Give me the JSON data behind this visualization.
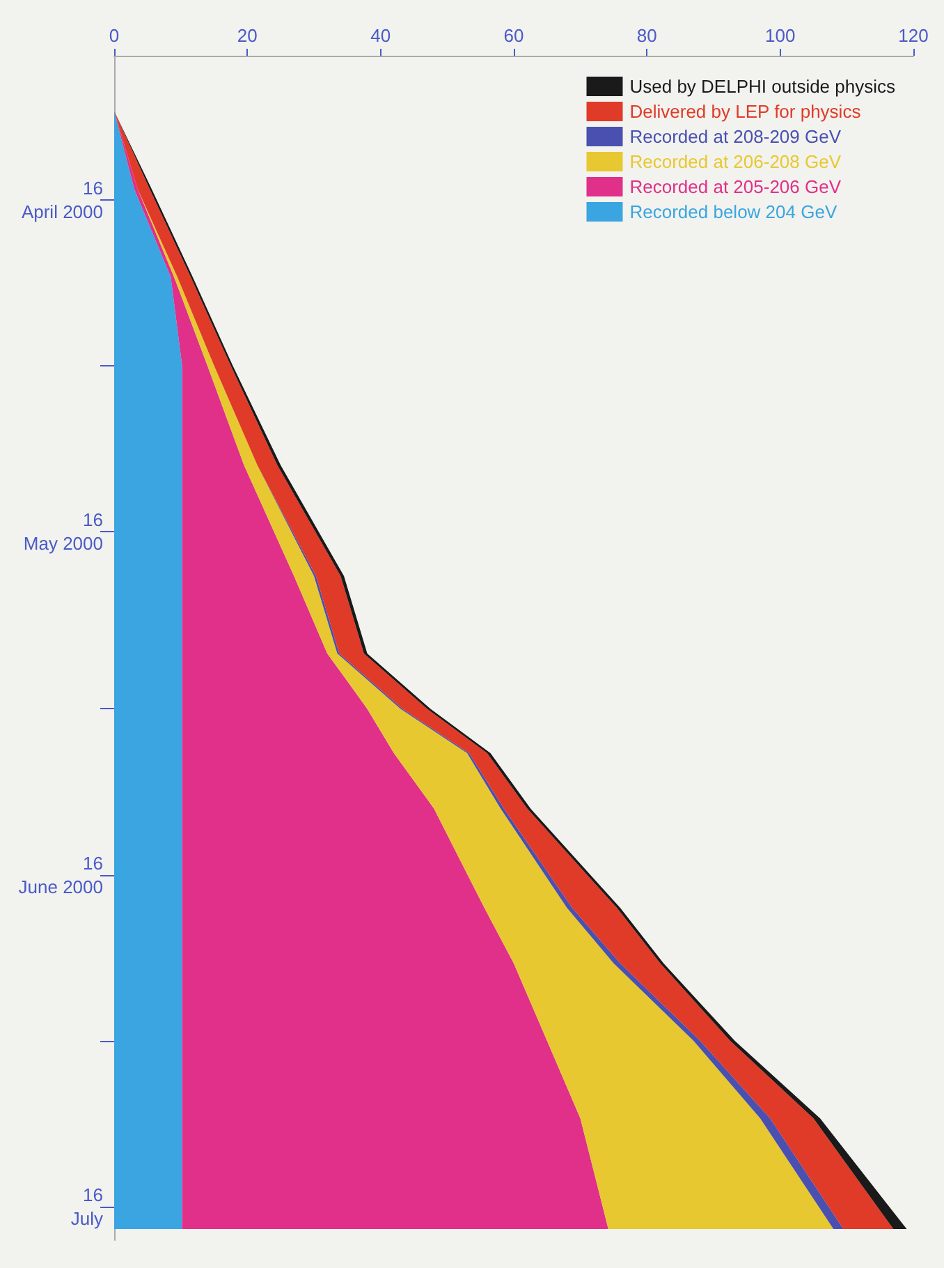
{
  "chart_data": {
    "type": "area",
    "stacked": true,
    "orientation": "horizontal",
    "legend": "top right",
    "grid": false,
    "marker": "none",
    "x": [
      "2000-04-08",
      "2000-04-15",
      "2000-04-23",
      "2000-05-01",
      "2000-05-10",
      "2000-05-20",
      "2000-05-27",
      "2000-06-01",
      "2000-06-05",
      "2000-06-10",
      "2000-06-19",
      "2000-06-24",
      "2000-07-01",
      "2000-07-08",
      "2000-07-18"
    ],
    "ylim": [
      "2000-07-19",
      "2000-04-03"
    ],
    "yticks": [
      {
        "value": "2000-04-16",
        "label": "16\nApril 2000"
      },
      {
        "value": "2000-05-01",
        "label": null
      },
      {
        "value": "2000-05-16",
        "label": "16\nMay 2000"
      },
      {
        "value": "2000-06-01",
        "label": null
      },
      {
        "value": "2000-06-16",
        "label": "16\nJune 2000"
      },
      {
        "value": "2000-07-01",
        "label": null
      },
      {
        "value": "2000-07-16",
        "label": "16\nJuly"
      }
    ],
    "xlim": [
      0,
      120
    ],
    "xticks": [
      0,
      20,
      40,
      60,
      80,
      100,
      120
    ],
    "series": [
      {
        "name": "Recorded below 204 GeV",
        "color": "#3aa5e0",
        "values": [
          0,
          3,
          8.5,
          10.2,
          10.2,
          10.2,
          10.2,
          10.2,
          10.2,
          10.2,
          10.2,
          10.2,
          10.2,
          10.2,
          10.2
        ]
      },
      {
        "name": "Recorded at 205-206 GeV",
        "color": "#e0308a",
        "values": [
          0,
          0.5,
          0.5,
          3.8,
          9.3,
          16.8,
          21.8,
          27.8,
          31.8,
          37.8,
          45.4,
          49.8,
          54.8,
          59.8,
          64
        ]
      },
      {
        "name": "Recorded at 206-208 GeV",
        "color": "#e8c830",
        "values": [
          0,
          0,
          0.5,
          1,
          2,
          3,
          1.5,
          5,
          11,
          10,
          12.4,
          15,
          22,
          27,
          33.8
        ]
      },
      {
        "name": "Recorded at 208-209 GeV",
        "color": "#4a50b0",
        "values": [
          0,
          0,
          0,
          0,
          0,
          0.3,
          0.3,
          0.3,
          0.3,
          0.5,
          0.8,
          1,
          1,
          1.5,
          1.5
        ]
      },
      {
        "name": "Delivered by LEP for physics",
        "color": "#e03a28",
        "values": [
          0,
          1.8,
          2,
          2.5,
          3,
          3.7,
          3.7,
          3.7,
          2.7,
          3.5,
          6.7,
          6,
          4.5,
          6.5,
          7.5
        ]
      },
      {
        "name": "Used by DELPHI outside physics",
        "color": "#1a1a1a",
        "values": [
          0,
          0.3,
          0.3,
          0.3,
          0.5,
          0.5,
          0.5,
          0.5,
          0.5,
          0.5,
          0.5,
          0.5,
          0.7,
          1,
          2
        ]
      }
    ]
  }
}
